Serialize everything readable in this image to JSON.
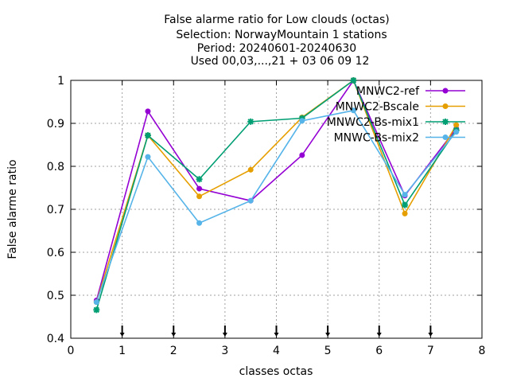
{
  "chart_data": {
    "type": "line",
    "title": [
      "False alarme ratio  for Low clouds (octas)",
      "Selection: NorwayMountain      1 stations",
      "Period: 20240601-20240630",
      "Used 00,03,...,21 + 03 06 09 12"
    ],
    "xlabel": "classes octas",
    "ylabel": "False alarme ratio",
    "xlim": [
      0,
      8
    ],
    "ylim": [
      0.4,
      1.0
    ],
    "x_ticks": [
      0,
      1,
      2,
      3,
      4,
      5,
      6,
      7,
      8
    ],
    "x_tick_labels": [
      "0",
      "1",
      "2",
      "3",
      "4",
      "5",
      "6",
      "7",
      "8"
    ],
    "y_ticks": [
      0.4,
      0.5,
      0.6,
      0.7,
      0.8,
      0.9,
      1.0
    ],
    "y_tick_labels": [
      "0.4",
      "0.5",
      "0.6",
      "0.7",
      "0.8",
      "0.9",
      "1"
    ],
    "grid": true,
    "legend_position": "top-right",
    "x": [
      0.5,
      1.5,
      2.5,
      3.5,
      4.5,
      5.5,
      6.5,
      7.5
    ],
    "series": [
      {
        "name": "MNWC2-ref",
        "color": "#9400d3",
        "marker": "circle",
        "values": [
          0.488,
          0.928,
          0.748,
          0.72,
          0.826,
          1.0,
          0.732,
          0.888
        ]
      },
      {
        "name": "MNWC2-Bscale",
        "color": "#e69f00",
        "marker": "circle",
        "values": [
          0.484,
          0.872,
          0.73,
          0.792,
          0.914,
          1.0,
          0.69,
          0.896
        ]
      },
      {
        "name": "MNWC2-Bs-mix1",
        "color": "#009e73",
        "marker": "star",
        "values": [
          0.466,
          0.872,
          0.77,
          0.904,
          0.912,
          1.0,
          0.71,
          0.884
        ]
      },
      {
        "name": "MNWC-Bs-mix2",
        "color": "#56b4e9",
        "marker": "circle",
        "values": [
          0.484,
          0.822,
          0.668,
          0.72,
          0.906,
          0.93,
          0.734,
          0.88
        ]
      }
    ]
  }
}
